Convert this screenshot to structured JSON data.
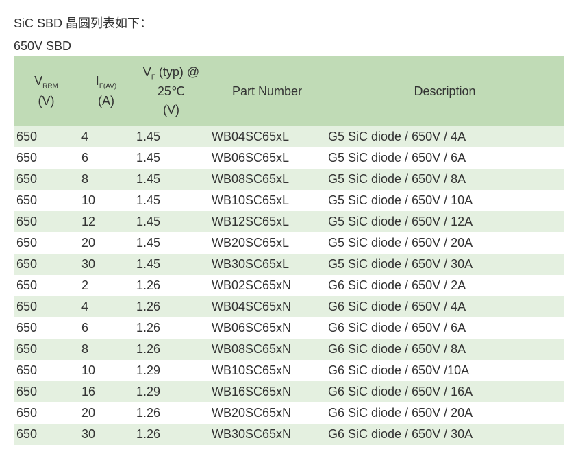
{
  "header": {
    "title": "SiC SBD 晶圆列表如下：",
    "subtitle": "650V SBD"
  },
  "table": {
    "columns": {
      "vrrm_label": "V",
      "vrrm_sub": "RRM",
      "vrrm_unit": "(V)",
      "if_label": "I",
      "if_sub": "F(AV)",
      "if_unit": "(A)",
      "vf_line1": "V",
      "vf_sub": "F",
      "vf_line1b": " (typ) @",
      "vf_line2": "25℃",
      "vf_unit": "(V)",
      "part": "Part Number",
      "desc": "Description"
    },
    "rows": [
      {
        "vrrm": "650",
        "if": "4",
        "vf": "1.45",
        "part": "WB04SC65xL",
        "desc": "G5 SiC diode / 650V / 4A"
      },
      {
        "vrrm": "650",
        "if": "6",
        "vf": "1.45",
        "part": "WB06SC65xL",
        "desc": "G5 SiC diode / 650V / 6A"
      },
      {
        "vrrm": "650",
        "if": "8",
        "vf": "1.45",
        "part": "WB08SC65xL",
        "desc": "G5 SiC diode / 650V / 8A"
      },
      {
        "vrrm": "650",
        "if": "10",
        "vf": "1.45",
        "part": "WB10SC65xL",
        "desc": "G5 SiC diode / 650V / 10A"
      },
      {
        "vrrm": "650",
        "if": "12",
        "vf": "1.45",
        "part": "WB12SC65xL",
        "desc": "G5 SiC diode / 650V / 12A"
      },
      {
        "vrrm": "650",
        "if": "20",
        "vf": "1.45",
        "part": "WB20SC65xL",
        "desc": "G5 SiC diode / 650V / 20A"
      },
      {
        "vrrm": "650",
        "if": "30",
        "vf": "1.45",
        "part": "WB30SC65xL",
        "desc": "G5 SiC diode / 650V / 30A"
      },
      {
        "vrrm": "650",
        "if": "2",
        "vf": "1.26",
        "part": "WB02SC65xN",
        "desc": "G6 SiC diode / 650V / 2A"
      },
      {
        "vrrm": "650",
        "if": "4",
        "vf": "1.26",
        "part": "WB04SC65xN",
        "desc": "G6 SiC diode / 650V / 4A"
      },
      {
        "vrrm": "650",
        "if": "6",
        "vf": "1.26",
        "part": "WB06SC65xN",
        "desc": "G6 SiC diode / 650V / 6A"
      },
      {
        "vrrm": "650",
        "if": "8",
        "vf": "1.26",
        "part": "WB08SC65xN",
        "desc": "G6 SiC diode / 650V / 8A"
      },
      {
        "vrrm": "650",
        "if": "10",
        "vf": "1.29",
        "part": "WB10SC65xN",
        "desc": "G6 SiC diode / 650V /10A"
      },
      {
        "vrrm": "650",
        "if": "16",
        "vf": "1.29",
        "part": "WB16SC65xN",
        "desc": "G6 SiC diode / 650V / 16A"
      },
      {
        "vrrm": "650",
        "if": "20",
        "vf": "1.26",
        "part": "WB20SC65xN",
        "desc": "G6 SiC diode / 650V / 20A"
      },
      {
        "vrrm": "650",
        "if": "30",
        "vf": "1.26",
        "part": "WB30SC65xN",
        "desc": "G6 SiC diode / 650V / 30A"
      }
    ]
  },
  "style": {
    "header_bg": "#c0dbb6",
    "row_odd_bg": "#e4f0e0",
    "row_even_bg": "#ffffff",
    "text_color": "#333333",
    "font_size_body": 18,
    "font_size_sub": 10
  }
}
